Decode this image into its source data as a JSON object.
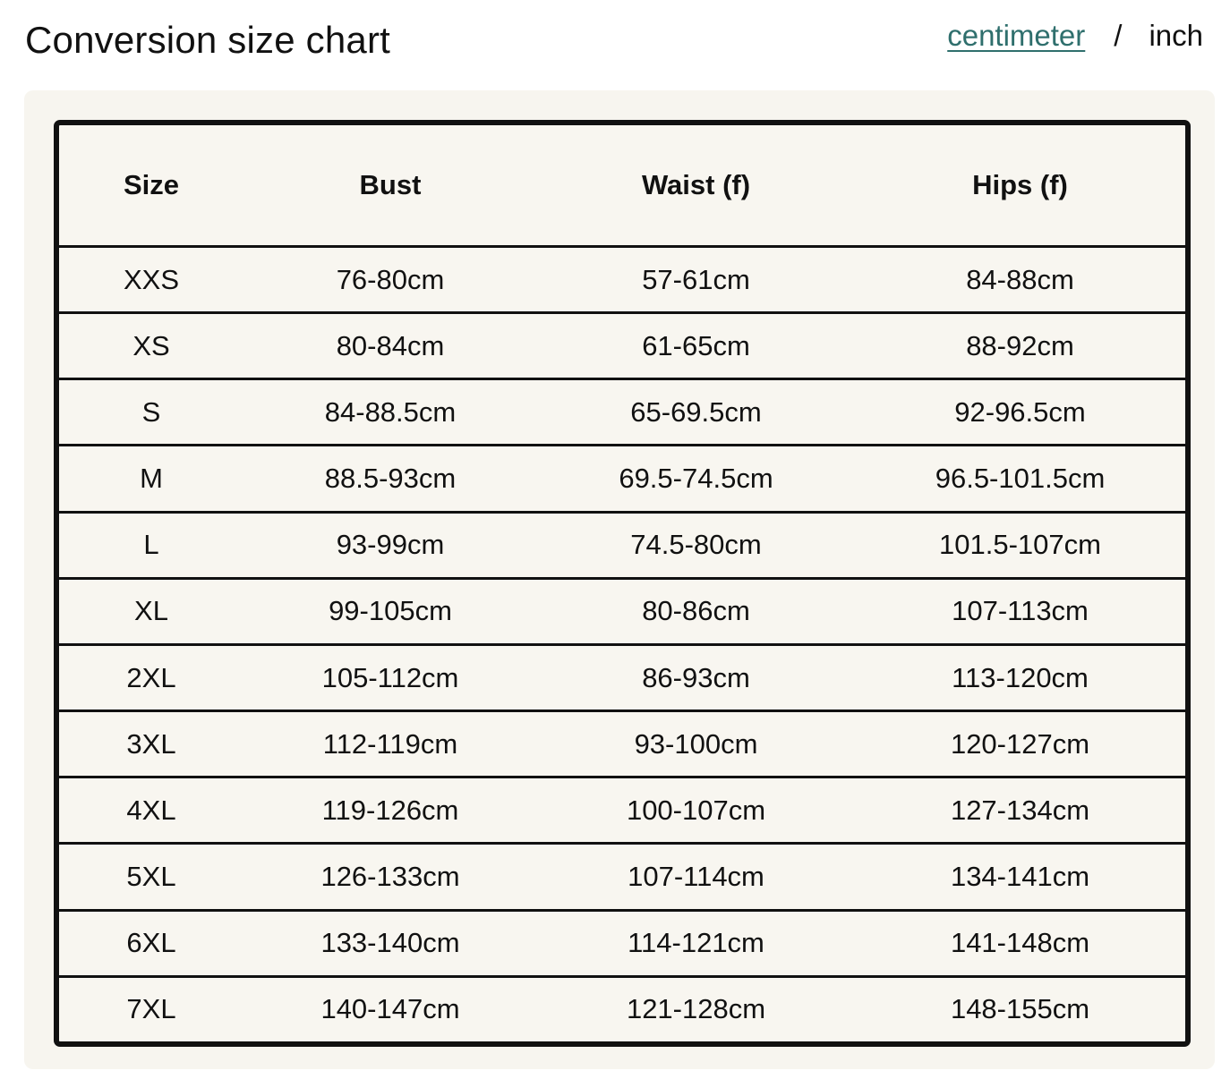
{
  "header": {
    "title": "Conversion size chart",
    "unit_options": {
      "active": "centimeter",
      "separator": "/",
      "inactive": "inch"
    }
  },
  "colors": {
    "link": "#2f6f6d",
    "panel_background": "#f7f5ef",
    "border": "#111111"
  },
  "table": {
    "headers": [
      "Size",
      "Bust",
      "Waist (f)",
      "Hips (f)"
    ],
    "rows": [
      [
        "XXS",
        "76-80cm",
        "57-61cm",
        "84-88cm"
      ],
      [
        "XS",
        "80-84cm",
        "61-65cm",
        "88-92cm"
      ],
      [
        "S",
        "84-88.5cm",
        "65-69.5cm",
        "92-96.5cm"
      ],
      [
        "M",
        "88.5-93cm",
        "69.5-74.5cm",
        "96.5-101.5cm"
      ],
      [
        "L",
        "93-99cm",
        "74.5-80cm",
        "101.5-107cm"
      ],
      [
        "XL",
        "99-105cm",
        "80-86cm",
        "107-113cm"
      ],
      [
        "2XL",
        "105-112cm",
        "86-93cm",
        "113-120cm"
      ],
      [
        "3XL",
        "112-119cm",
        "93-100cm",
        "120-127cm"
      ],
      [
        "4XL",
        "119-126cm",
        "100-107cm",
        "127-134cm"
      ],
      [
        "5XL",
        "126-133cm",
        "107-114cm",
        "134-141cm"
      ],
      [
        "6XL",
        "133-140cm",
        "114-121cm",
        "141-148cm"
      ],
      [
        "7XL",
        "140-147cm",
        "121-128cm",
        "148-155cm"
      ]
    ]
  }
}
